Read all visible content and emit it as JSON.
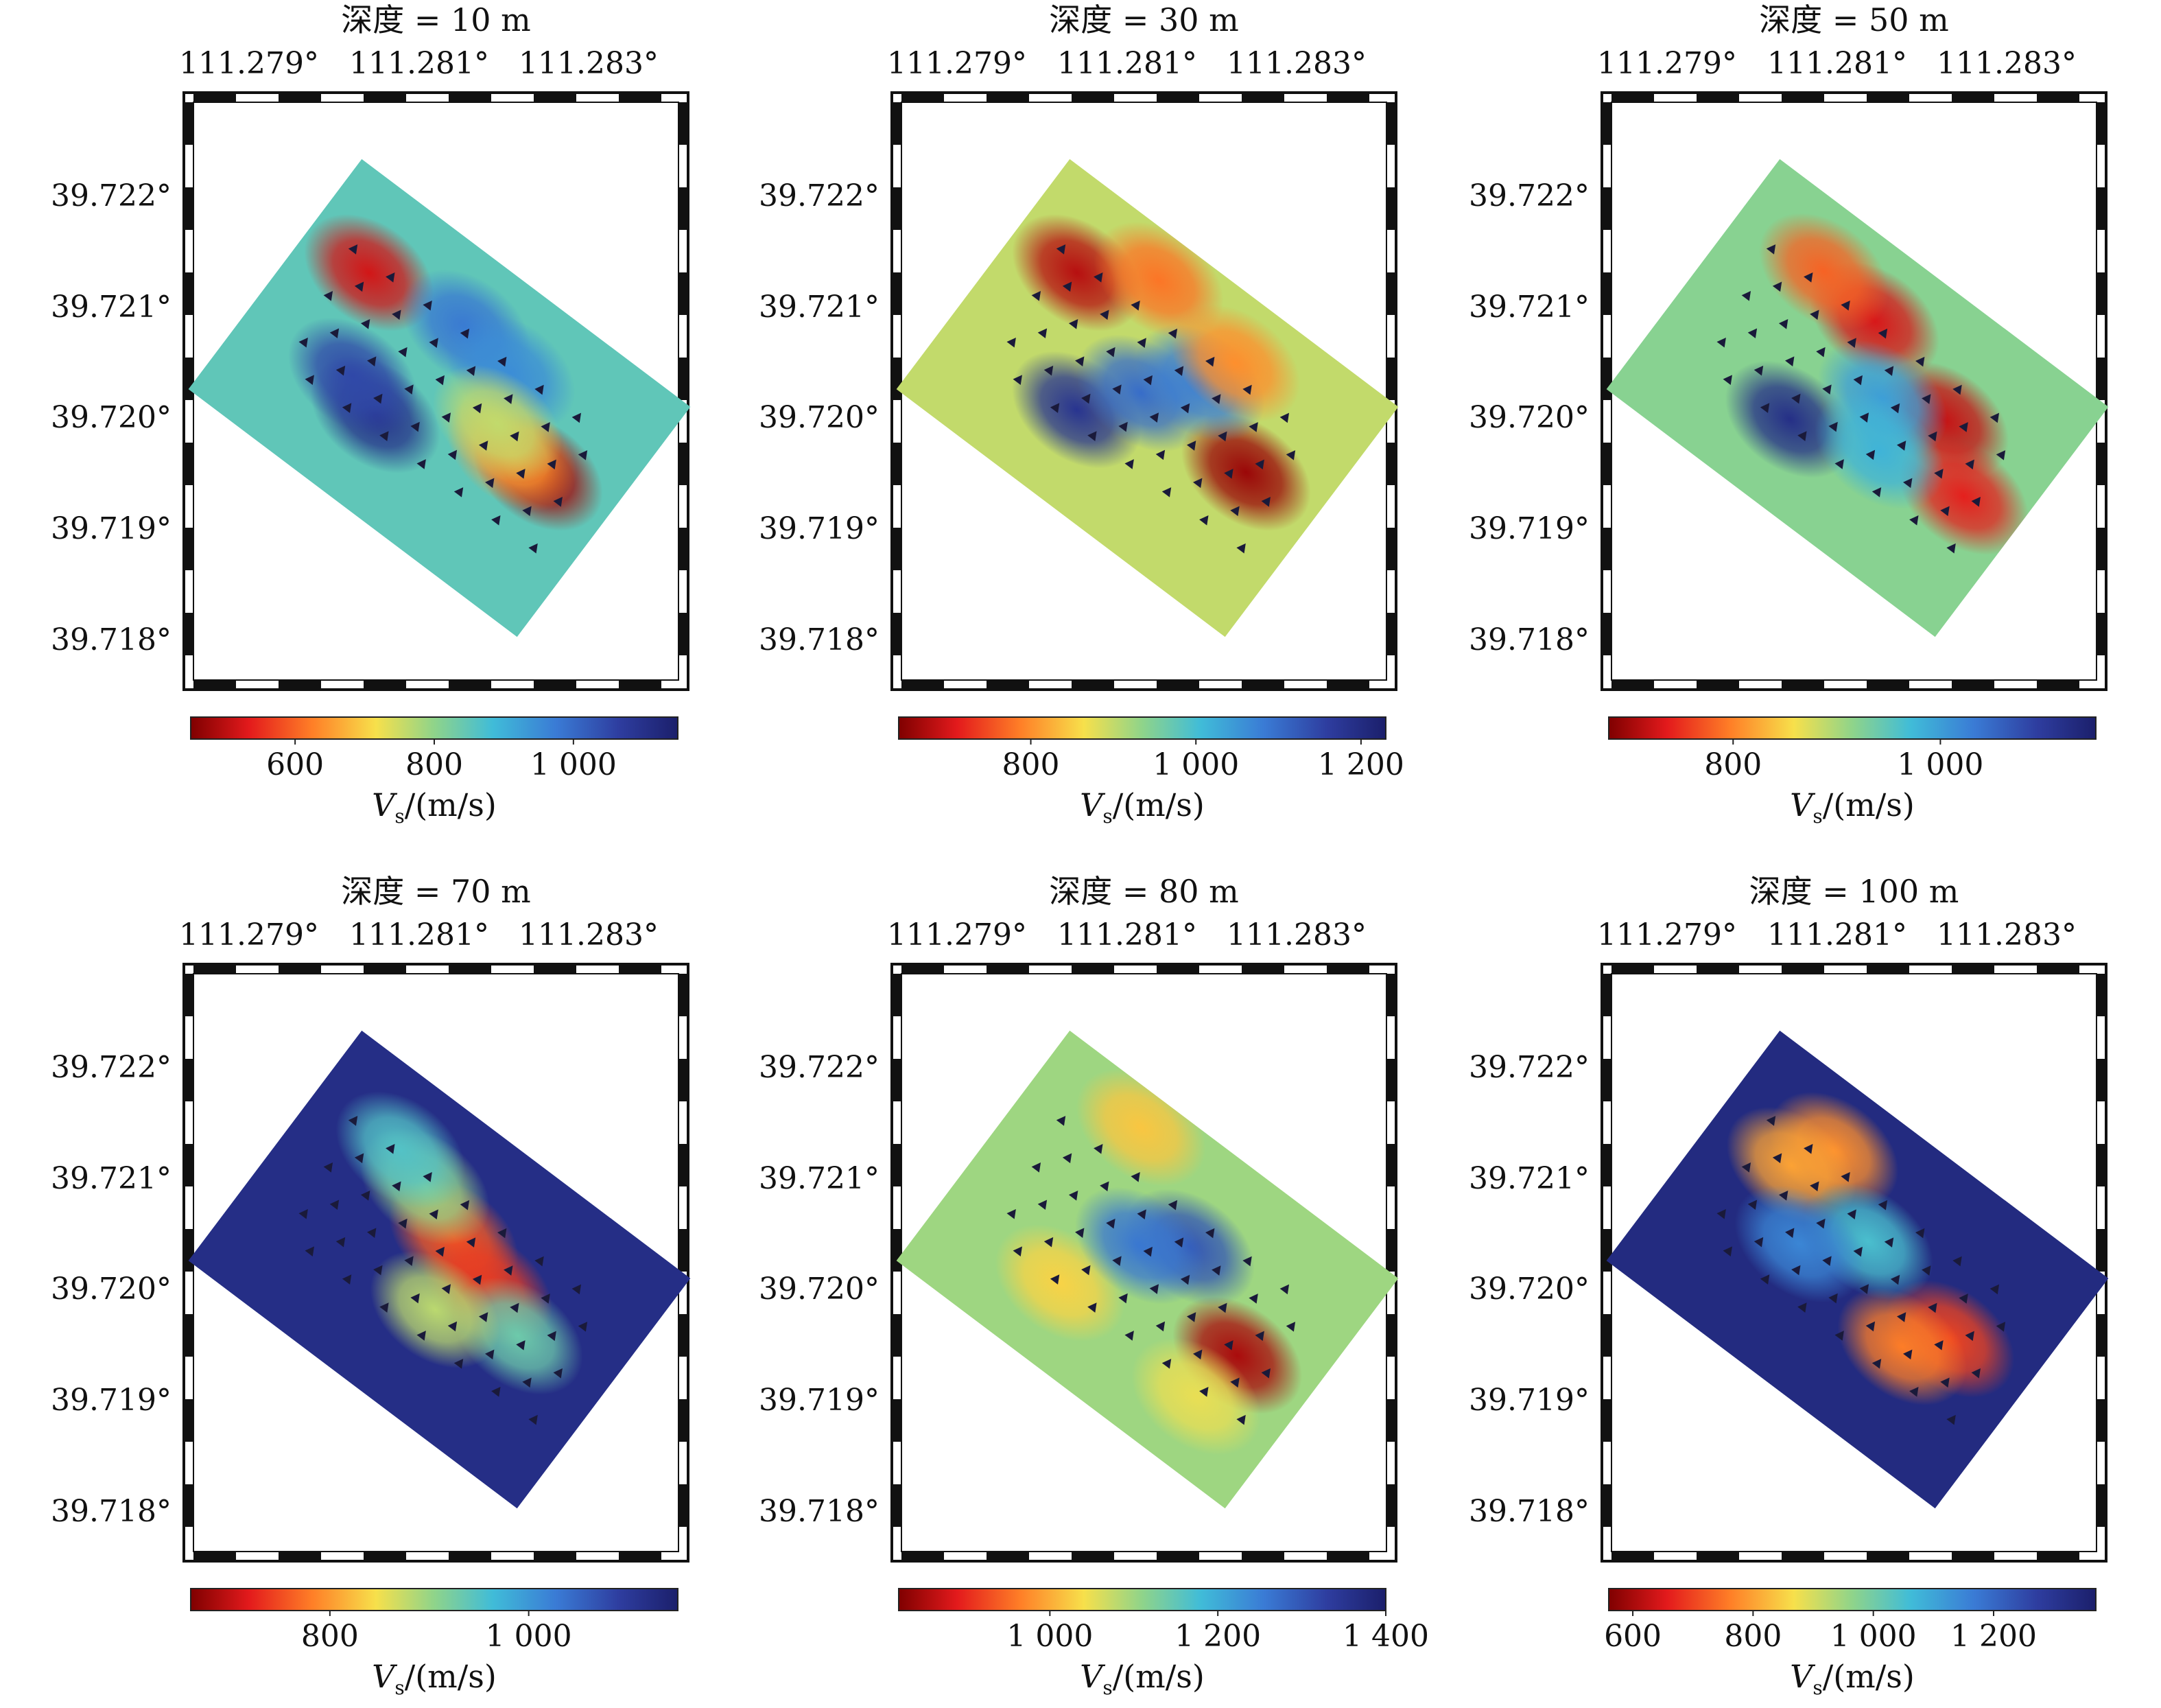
{
  "figure": {
    "panels": [
      {
        "title": "深度 = 10 m",
        "lon_ticks": [
          "111.279°",
          "111.281°",
          "111.283°"
        ],
        "lat_ticks": [
          "39.722°",
          "39.721°",
          "39.720°",
          "39.719°",
          "39.718°"
        ],
        "cbar_ticks": [
          "600",
          "800",
          "1 000"
        ],
        "cbar_label": "Vs/(m/s)",
        "cbar_range": [
          450,
          1150
        ],
        "background_velocity": 850,
        "anomalies": [
          {
            "u": 0.18,
            "v": 0.3,
            "velocity": 520
          },
          {
            "u": 0.8,
            "v": 0.5,
            "velocity": 480
          },
          {
            "u": 0.72,
            "v": 0.5,
            "velocity": 650
          },
          {
            "u": 0.4,
            "v": 0.68,
            "velocity": 1100
          },
          {
            "u": 0.3,
            "v": 0.62,
            "velocity": 1050
          },
          {
            "u": 0.45,
            "v": 0.25,
            "velocity": 980
          },
          {
            "u": 0.6,
            "v": 0.28,
            "velocity": 950
          },
          {
            "u": 0.65,
            "v": 0.45,
            "velocity": 760
          }
        ]
      },
      {
        "title": "深度 = 30 m",
        "lon_ticks": [
          "111.279°",
          "111.281°",
          "111.283°"
        ],
        "lat_ticks": [
          "39.722°",
          "39.721°",
          "39.720°",
          "39.719°",
          "39.718°"
        ],
        "cbar_ticks": [
          "800",
          "1 000",
          "1 200"
        ],
        "cbar_label": "Vs/(m/s)",
        "cbar_range": [
          640,
          1230
        ],
        "background_velocity": 900,
        "anomalies": [
          {
            "u": 0.18,
            "v": 0.3,
            "velocity": 680
          },
          {
            "u": 0.8,
            "v": 0.5,
            "velocity": 660
          },
          {
            "u": 0.38,
            "v": 0.68,
            "velocity": 1180
          },
          {
            "u": 0.48,
            "v": 0.5,
            "velocity": 1100
          },
          {
            "u": 0.58,
            "v": 0.35,
            "velocity": 1080
          },
          {
            "u": 0.35,
            "v": 0.15,
            "velocity": 780
          },
          {
            "u": 0.62,
            "v": 0.22,
            "velocity": 800
          }
        ]
      },
      {
        "title": "深度 = 50 m",
        "lon_ticks": [
          "111.279°",
          "111.281°",
          "111.283°"
        ],
        "lat_ticks": [
          "39.722°",
          "39.721°",
          "39.720°",
          "39.719°",
          "39.718°"
        ],
        "cbar_ticks": [
          "800",
          "1 000"
        ],
        "cbar_label": "Vs/(m/s)",
        "cbar_range": [
          680,
          1150
        ],
        "background_velocity": 920,
        "anomalies": [
          {
            "u": 0.42,
            "v": 0.25,
            "velocity": 730
          },
          {
            "u": 0.25,
            "v": 0.22,
            "velocity": 780
          },
          {
            "u": 0.7,
            "v": 0.38,
            "velocity": 720
          },
          {
            "u": 0.85,
            "v": 0.55,
            "velocity": 740
          },
          {
            "u": 0.4,
            "v": 0.7,
            "velocity": 1120
          },
          {
            "u": 0.55,
            "v": 0.45,
            "velocity": 1000
          },
          {
            "u": 0.62,
            "v": 0.6,
            "velocity": 980
          }
        ]
      },
      {
        "title": "深度 = 70 m",
        "lon_ticks": [
          "111.279°",
          "111.281°",
          "111.283°"
        ],
        "lat_ticks": [
          "39.722°",
          "39.721°",
          "39.720°",
          "39.719°",
          "39.718°"
        ],
        "cbar_ticks": [
          "800",
          "1 000"
        ],
        "cbar_label": "Vs/(m/s)",
        "cbar_range": [
          660,
          1150
        ],
        "background_velocity": 1120,
        "anomalies": [
          {
            "u": 0.48,
            "v": 0.38,
            "velocity": 760
          },
          {
            "u": 0.62,
            "v": 0.45,
            "velocity": 740
          },
          {
            "u": 0.35,
            "v": 0.3,
            "velocity": 900
          },
          {
            "u": 0.75,
            "v": 0.52,
            "velocity": 930
          },
          {
            "u": 0.25,
            "v": 0.25,
            "velocity": 950
          },
          {
            "u": 0.55,
            "v": 0.62,
            "velocity": 880
          }
        ]
      },
      {
        "title": "深度 = 80 m",
        "lon_ticks": [
          "111.279°",
          "111.281°",
          "111.283°"
        ],
        "lat_ticks": [
          "39.722°",
          "39.721°",
          "39.720°",
          "39.719°",
          "39.718°"
        ],
        "cbar_ticks": [
          "1 000",
          "1 200",
          "1 400"
        ],
        "cbar_label": "Vs/(m/s)",
        "cbar_range": [
          820,
          1400
        ],
        "background_velocity": 1100,
        "anomalies": [
          {
            "u": 0.8,
            "v": 0.55,
            "velocity": 850
          },
          {
            "u": 0.35,
            "v": 0.72,
            "velocity": 1030
          },
          {
            "u": 0.28,
            "v": 0.12,
            "velocity": 1020
          },
          {
            "u": 0.55,
            "v": 0.35,
            "velocity": 1300
          },
          {
            "u": 0.45,
            "v": 0.45,
            "velocity": 1260
          },
          {
            "u": 0.78,
            "v": 0.75,
            "velocity": 1050
          }
        ]
      },
      {
        "title": "深度 = 100 m",
        "lon_ticks": [
          "111.279°",
          "111.281°",
          "111.283°"
        ],
        "lat_ticks": [
          "39.722°",
          "39.721°",
          "39.720°",
          "39.719°",
          "39.718°"
        ],
        "cbar_ticks": [
          "600",
          "800",
          "1 000",
          "1 200"
        ],
        "cbar_label": "Vs/(m/s)",
        "cbar_range": [
          560,
          1370
        ],
        "background_velocity": 1330,
        "anomalies": [
          {
            "u": 0.28,
            "v": 0.22,
            "velocity": 780
          },
          {
            "u": 0.22,
            "v": 0.35,
            "velocity": 800
          },
          {
            "u": 0.78,
            "v": 0.5,
            "velocity": 700
          },
          {
            "u": 0.7,
            "v": 0.62,
            "velocity": 760
          },
          {
            "u": 0.48,
            "v": 0.4,
            "velocity": 1050
          },
          {
            "u": 0.35,
            "v": 0.55,
            "velocity": 1150
          }
        ]
      }
    ]
  },
  "colors": {
    "frame": "#111111",
    "station_marker": "#1a1a3a"
  },
  "chart_data": {
    "type": "heatmap",
    "description_values": "Shear-wave velocity (Vs) maps at six depths",
    "panels": [
      {
        "depth_m": 10,
        "vs_range_mps": [
          450,
          1150
        ]
      },
      {
        "depth_m": 30,
        "vs_range_mps": [
          640,
          1230
        ]
      },
      {
        "depth_m": 50,
        "vs_range_mps": [
          680,
          1150
        ]
      },
      {
        "depth_m": 70,
        "vs_range_mps": [
          660,
          1150
        ]
      },
      {
        "depth_m": 80,
        "vs_range_mps": [
          820,
          1400
        ]
      },
      {
        "depth_m": 100,
        "vs_range_mps": [
          560,
          1370
        ]
      }
    ],
    "x_ticks_deg": [
      111.279,
      111.281,
      111.283
    ],
    "y_ticks_deg": [
      39.722,
      39.721,
      39.72,
      39.719,
      39.718
    ],
    "colorbar_label": "Vs/(m/s)",
    "colormap": "jet-reversed"
  }
}
